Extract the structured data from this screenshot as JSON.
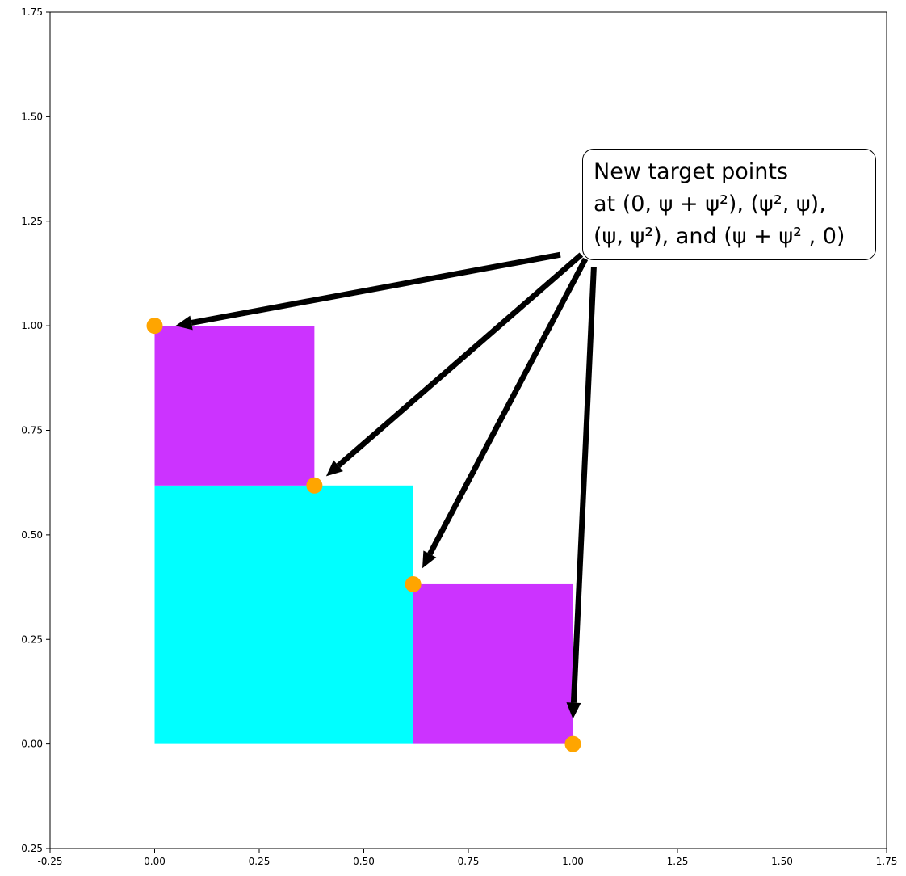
{
  "chart_data": {
    "type": "scatter",
    "title": "",
    "xlabel": "",
    "ylabel": "",
    "xlim": [
      -0.25,
      1.75
    ],
    "ylim": [
      -0.25,
      1.75
    ],
    "grid": false,
    "xticks": [
      "-0.25",
      "0.00",
      "0.25",
      "0.50",
      "0.75",
      "1.00",
      "1.25",
      "1.50",
      "1.75"
    ],
    "yticks": [
      "-0.25",
      "0.00",
      "0.25",
      "0.50",
      "0.75",
      "1.00",
      "1.25",
      "1.50",
      "1.75"
    ],
    "rectangles": [
      {
        "x0": 0.0,
        "y0": 0.0,
        "x1": 0.618,
        "y1": 0.618,
        "color": "#00ffff"
      },
      {
        "x0": 0.0,
        "y0": 0.618,
        "x1": 0.382,
        "y1": 1.0,
        "color": "#cc33ff"
      },
      {
        "x0": 0.618,
        "y0": 0.0,
        "x1": 1.0,
        "y1": 0.382,
        "color": "#cc33ff"
      }
    ],
    "points": [
      {
        "x": 0.0,
        "y": 1.0
      },
      {
        "x": 0.382,
        "y": 0.618
      },
      {
        "x": 0.618,
        "y": 0.382
      },
      {
        "x": 1.0,
        "y": 0.0
      }
    ],
    "point_color": "#ffa500",
    "annotation": {
      "lines": [
        "New target points",
        "at (0, ψ + ψ²), (ψ², ψ),",
        " (ψ, ψ²),  and (ψ + ψ² , 0)"
      ],
      "arrows": [
        {
          "from": [
            0.97,
            1.17
          ],
          "to": [
            0.05,
            1.0
          ]
        },
        {
          "from": [
            1.02,
            1.17
          ],
          "to": [
            0.41,
            0.64
          ]
        },
        {
          "from": [
            1.03,
            1.16
          ],
          "to": [
            0.64,
            0.42
          ]
        },
        {
          "from": [
            1.05,
            1.14
          ],
          "to": [
            1.0,
            0.06
          ]
        }
      ],
      "arrow_color": "#000000"
    }
  }
}
